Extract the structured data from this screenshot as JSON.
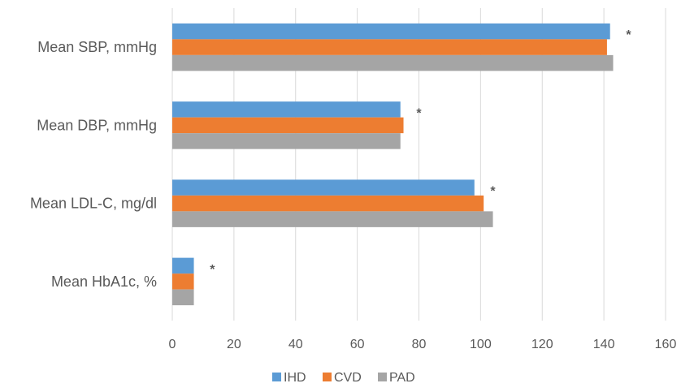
{
  "chart_data": {
    "type": "bar",
    "orientation": "horizontal",
    "categories": [
      "Mean SBP, mmHg",
      "Mean DBP, mmHg",
      "Mean LDL-C, mg/dl",
      "Mean HbA1c, %"
    ],
    "series": [
      {
        "name": "IHD",
        "color": "#5b9bd5",
        "values": [
          142,
          74,
          98,
          7
        ]
      },
      {
        "name": "CVD",
        "color": "#ed7d31",
        "values": [
          141,
          75,
          101,
          7
        ]
      },
      {
        "name": "PAD",
        "color": "#a5a5a5",
        "values": [
          143,
          74,
          104,
          7
        ]
      }
    ],
    "annotations": [
      {
        "category": "Mean SBP, mmHg",
        "text": "*",
        "x": 148
      },
      {
        "category": "Mean DBP, mmHg",
        "text": "*",
        "x": 80
      },
      {
        "category": "Mean LDL-C, mg/dl",
        "text": "*",
        "x": 104
      },
      {
        "category": "Mean HbA1c, %",
        "text": "*",
        "x": 13
      }
    ],
    "xlim": [
      0,
      160
    ],
    "xticks": [
      0,
      20,
      40,
      60,
      80,
      100,
      120,
      140,
      160
    ],
    "grid": "vertical",
    "legend_position": "bottom"
  }
}
